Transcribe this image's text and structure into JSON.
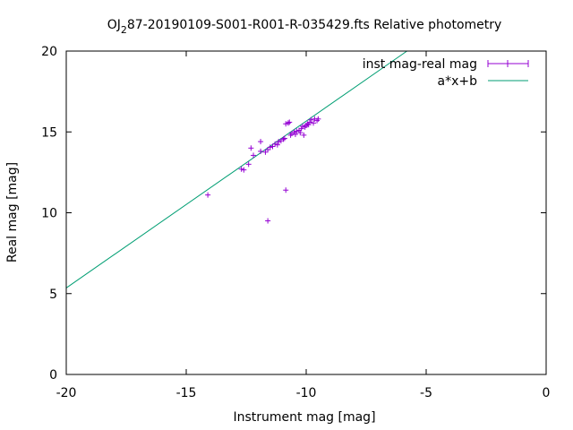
{
  "chart_data": {
    "type": "scatter",
    "title": "OJ287-20190109-S001-R001-R-035429.fts Relative photometry",
    "title_main": "OJ",
    "title_sub": "2",
    "title_rest": "87-20190109-S001-R001-R-035429.fts Relative photometry",
    "xlabel": "Instrument mag [mag]",
    "ylabel": "Real mag [mag]",
    "xlim": [
      -20,
      0
    ],
    "ylim": [
      0,
      20
    ],
    "xticks": [
      -20,
      -15,
      -10,
      -5,
      0
    ],
    "yticks": [
      0,
      5,
      10,
      15,
      20
    ],
    "legend_position": "top-right",
    "series": [
      {
        "name": "inst mag-real mag",
        "color": "#9400d3",
        "marker": "plus-with-errorbar",
        "points": [
          [
            -14.1,
            11.1
          ],
          [
            -12.7,
            12.7
          ],
          [
            -12.6,
            12.65
          ],
          [
            -12.4,
            13.0
          ],
          [
            -12.3,
            14.0
          ],
          [
            -12.2,
            13.55
          ],
          [
            -11.9,
            14.4
          ],
          [
            -11.9,
            13.8
          ],
          [
            -11.7,
            13.75
          ],
          [
            -11.6,
            13.9
          ],
          [
            -11.5,
            14.05
          ],
          [
            -11.4,
            14.1
          ],
          [
            -11.3,
            14.25
          ],
          [
            -11.2,
            14.2
          ],
          [
            -11.15,
            14.4
          ],
          [
            -11.05,
            14.45
          ],
          [
            -10.95,
            14.55
          ],
          [
            -10.9,
            14.6
          ],
          [
            -10.85,
            15.5
          ],
          [
            -10.75,
            15.55
          ],
          [
            -10.7,
            15.6
          ],
          [
            -10.65,
            14.8
          ],
          [
            -10.6,
            14.9
          ],
          [
            -10.5,
            15.0
          ],
          [
            -10.45,
            14.85
          ],
          [
            -10.4,
            15.05
          ],
          [
            -10.3,
            15.1
          ],
          [
            -10.25,
            14.95
          ],
          [
            -10.2,
            15.2
          ],
          [
            -10.15,
            15.35
          ],
          [
            -10.1,
            14.8
          ],
          [
            -10.05,
            15.3
          ],
          [
            -10.0,
            15.4
          ],
          [
            -9.95,
            15.5
          ],
          [
            -9.9,
            15.45
          ],
          [
            -9.85,
            15.6
          ],
          [
            -9.8,
            15.75
          ],
          [
            -9.7,
            15.55
          ],
          [
            -9.65,
            15.8
          ],
          [
            -9.55,
            15.7
          ],
          [
            -9.5,
            15.8
          ],
          [
            -10.85,
            11.4
          ],
          [
            -11.6,
            9.5
          ]
        ]
      },
      {
        "name": "a*x+b",
        "color": "#009e73",
        "type": "line",
        "line": [
          [
            -20,
            5.35
          ],
          [
            -5.8,
            20
          ]
        ]
      }
    ]
  }
}
